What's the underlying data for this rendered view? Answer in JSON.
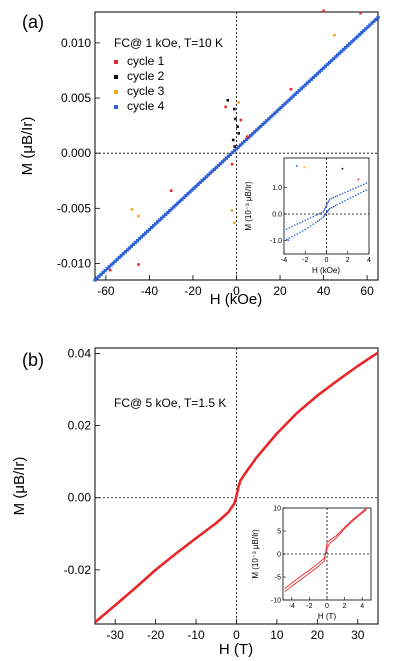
{
  "chart_data": [
    {
      "panel_label": "(a)",
      "type": "scatter",
      "annotation": "FC@ 1 kOe, T=10 K",
      "xlabel": "H (kOe)",
      "ylabel": "M (μB/Ir)",
      "xlim": [
        -65,
        65
      ],
      "ylim": [
        -0.0115,
        0.0128
      ],
      "xticks": [
        "-60",
        "-40",
        "-20",
        "0",
        "20",
        "40",
        "60"
      ],
      "yticks": [
        "-0.010",
        "-0.005",
        "0.000",
        "0.005",
        "0.010"
      ],
      "reference_lines": {
        "x": 0,
        "y": 0,
        "style": "dotted"
      },
      "legend_position": "top-left",
      "series": [
        {
          "name": "cycle 1",
          "color": "#e8262a",
          "points": [
            [
              -58,
              -0.0106
            ],
            [
              -45,
              -0.0101
            ],
            [
              -30,
              -0.0034
            ],
            [
              -5,
              0.0042
            ],
            [
              2,
              0.003
            ],
            [
              25,
              0.0058
            ],
            [
              40,
              0.0129
            ],
            [
              57,
              0.0127
            ],
            [
              -2,
              -0.001
            ],
            [
              5,
              0.0015
            ]
          ]
        },
        {
          "name": "cycle 2",
          "color": "#111111",
          "points": [
            [
              -1,
              0.004
            ],
            [
              -0.5,
              0.0031
            ],
            [
              0.5,
              0.0024
            ],
            [
              1,
              0.0018
            ],
            [
              -1.5,
              0.0012
            ],
            [
              -4,
              0.0048
            ],
            [
              -0.8,
              0.0006
            ]
          ]
        },
        {
          "name": "cycle 3",
          "color": "#f5a623",
          "points": [
            [
              -45,
              -0.0057
            ],
            [
              -48,
              -0.0051
            ],
            [
              1,
              0.0046
            ],
            [
              -1,
              -0.0063
            ],
            [
              -2,
              -0.0052
            ],
            [
              45,
              0.0107
            ]
          ]
        },
        {
          "name": "cycle 4",
          "color": "#2f62d6",
          "line_from": [
            -65,
            -0.0115
          ],
          "line_to": [
            65,
            0.0123
          ]
        }
      ],
      "inset": {
        "xlabel": "H (kOe)",
        "ylabel": "M (10⁻³ μB/Ir)",
        "xlim": [
          -4,
          4
        ],
        "ylim": [
          -1.5,
          2.1
        ],
        "xticks": [
          "-4",
          "-2",
          "0",
          "2",
          "4"
        ],
        "yticks": [
          "-1.0",
          "0.0",
          "1.0"
        ],
        "branches": [
          {
            "points": [
              [
                -4,
                -0.62
              ],
              [
                -3,
                -0.42
              ],
              [
                -2,
                -0.24
              ],
              [
                -1,
                -0.05
              ],
              [
                -0.3,
                0.08
              ],
              [
                0,
                0.32
              ],
              [
                0.3,
                0.55
              ],
              [
                1,
                0.68
              ],
              [
                2,
                0.85
              ],
              [
                3,
                1.02
              ],
              [
                4,
                1.2
              ]
            ]
          },
          {
            "points": [
              [
                -4,
                -1.0
              ],
              [
                -3,
                -0.8
              ],
              [
                -2,
                -0.58
              ],
              [
                -1,
                -0.32
              ],
              [
                -0.3,
                -0.12
              ],
              [
                0,
                0.05
              ],
              [
                0.3,
                0.2
              ],
              [
                1,
                0.35
              ],
              [
                2,
                0.55
              ],
              [
                3,
                0.75
              ],
              [
                4,
                0.95
              ]
            ]
          }
        ],
        "stray_points": [
          {
            "color": "#2f62d6",
            "x": -2.8,
            "y": 1.8
          },
          {
            "color": "#2f62d6",
            "x": -3.6,
            "y": -0.98
          },
          {
            "color": "#f5a623",
            "x": -2.1,
            "y": 1.75
          },
          {
            "color": "#111111",
            "x": 1.5,
            "y": 1.7
          },
          {
            "color": "#e8262a",
            "x": 3.0,
            "y": 1.3
          }
        ]
      }
    },
    {
      "panel_label": "(b)",
      "type": "line",
      "annotation": "FC@ 5 kOe, T=1.5 K",
      "xlabel": "H (T)",
      "ylabel": "M (μB/Ir)",
      "xlim": [
        -35,
        35
      ],
      "ylim": [
        -0.035,
        0.0415
      ],
      "xticks": [
        "-30",
        "-20",
        "-10",
        "0",
        "10",
        "20",
        "30"
      ],
      "yticks": [
        "-0.02",
        "0.00",
        "0.02",
        "0.04"
      ],
      "reference_lines": {
        "x": 0,
        "y": 0,
        "style": "dotted"
      },
      "series": [
        {
          "color": "#e8262a",
          "points": [
            [
              -35,
              -0.0345
            ],
            [
              -30,
              -0.0298
            ],
            [
              -25,
              -0.025
            ],
            [
              -20,
              -0.02
            ],
            [
              -15,
              -0.0155
            ],
            [
              -10,
              -0.0112
            ],
            [
              -5,
              -0.007
            ],
            [
              -2,
              -0.004
            ],
            [
              -0.5,
              -0.0015
            ],
            [
              0,
              0.0005
            ],
            [
              0.5,
              0.003
            ],
            [
              1,
              0.0048
            ],
            [
              2,
              0.0065
            ],
            [
              5,
              0.0112
            ],
            [
              10,
              0.0178
            ],
            [
              15,
              0.0235
            ],
            [
              20,
              0.0283
            ],
            [
              25,
              0.0325
            ],
            [
              30,
              0.0365
            ],
            [
              35,
              0.0402
            ]
          ]
        }
      ],
      "inset": {
        "xlabel": "H (T)",
        "ylabel": "M (10⁻³ μB/Ir)",
        "xlim": [
          -5,
          5
        ],
        "ylim": [
          -10,
          10
        ],
        "xticks": [
          "-4",
          "-2",
          "0",
          "2",
          "4"
        ],
        "yticks": [
          "-10",
          "-5",
          "0",
          "5",
          "10"
        ],
        "branches": [
          {
            "points": [
              [
                -4.8,
                -7.5
              ],
              [
                -4,
                -6.3
              ],
              [
                -3,
                -4.9
              ],
              [
                -2,
                -3.5
              ],
              [
                -1,
                -2.0
              ],
              [
                -0.3,
                -0.9
              ],
              [
                0,
                1.2
              ],
              [
                0.3,
                2.3
              ],
              [
                1,
                3.4
              ],
              [
                2,
                5.5
              ],
              [
                3,
                7.3
              ],
              [
                4,
                8.9
              ],
              [
                4.5,
                9.7
              ]
            ]
          },
          {
            "points": [
              [
                -4.8,
                -8.2
              ],
              [
                -4,
                -7.0
              ],
              [
                -3,
                -5.6
              ],
              [
                -2,
                -4.2
              ],
              [
                -1,
                -2.7
              ],
              [
                -0.3,
                -1.5
              ],
              [
                0,
                2.3
              ],
              [
                0.3,
                3.0
              ],
              [
                1,
                3.9
              ],
              [
                2,
                5.8
              ],
              [
                3,
                7.6
              ],
              [
                4,
                9.2
              ],
              [
                4.5,
                10.0
              ]
            ]
          }
        ]
      }
    }
  ]
}
